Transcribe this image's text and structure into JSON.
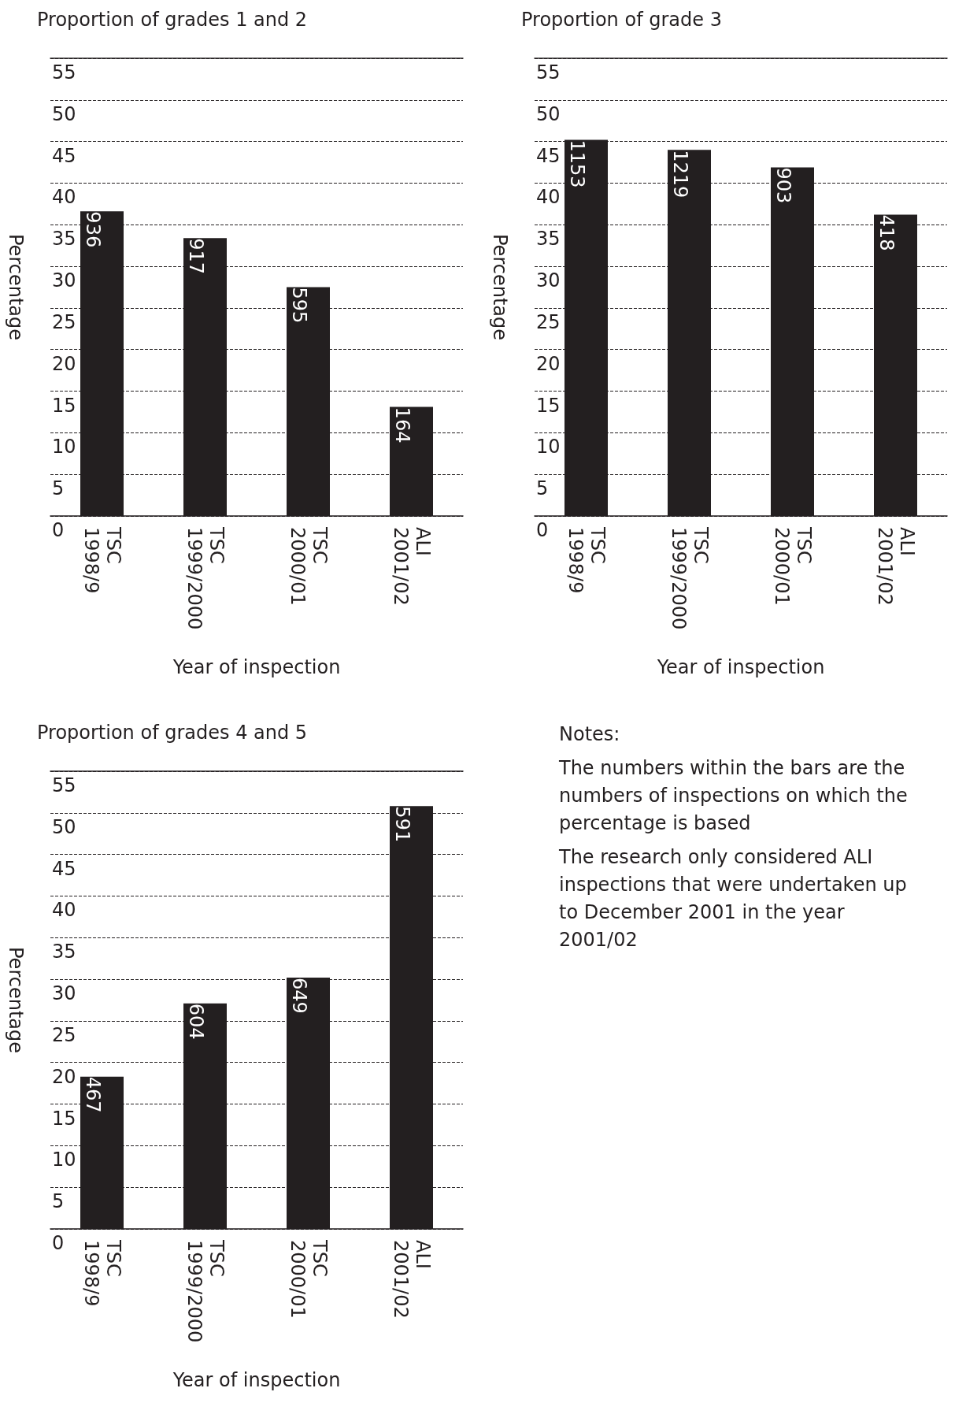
{
  "chart_data": [
    {
      "type": "bar",
      "title": "Proportion of grades 1 and 2",
      "xlabel": "Year of inspection",
      "ylabel": "Percentage",
      "categories": [
        "TSC\n1998/9",
        "TSC\n1999/2000",
        "TSC\n2000/01",
        "ALI\n2001/02"
      ],
      "values": [
        36.6,
        33.4,
        27.5,
        13.1
      ],
      "color": "#231f20",
      "ylim": [
        0,
        55
      ],
      "yticks": [
        0,
        5,
        10,
        15,
        20,
        25,
        30,
        35,
        40,
        45,
        50,
        55
      ],
      "grid": "y",
      "annotations": [
        {
          "text": "936",
          "x": "TSC\n1998/9",
          "y": 36.6
        },
        {
          "text": "917",
          "x": "TSC\n1999/2000",
          "y": 33.4
        },
        {
          "text": "595",
          "x": "TSC\n2000/01",
          "y": 27.5
        },
        {
          "text": "164",
          "x": "ALI\n2001/02",
          "y": 13.1
        }
      ]
    },
    {
      "type": "bar",
      "title": "Proportion of grade 3",
      "xlabel": "Year of inspection",
      "ylabel": "Percentage",
      "categories": [
        "TSC\n1998/9",
        "TSC\n1999/2000",
        "TSC\n2000/01",
        "ALI\n2001/02"
      ],
      "values": [
        45.2,
        44.0,
        41.9,
        36.2
      ],
      "color": "#231f20",
      "ylim": [
        0,
        55
      ],
      "yticks": [
        0,
        5,
        10,
        15,
        20,
        25,
        30,
        35,
        40,
        45,
        50,
        55
      ],
      "grid": "y",
      "annotations": [
        {
          "text": "1153",
          "x": "TSC\n1998/9",
          "y": 45.2
        },
        {
          "text": "1219",
          "x": "TSC\n1999/2000",
          "y": 44.0
        },
        {
          "text": "903",
          "x": "TSC\n2000/01",
          "y": 41.9
        },
        {
          "text": "418",
          "x": "ALI\n2001/02",
          "y": 36.2
        }
      ]
    },
    {
      "type": "bar",
      "title": "Proportion of grades 4 and 5",
      "xlabel": "Year of inspection",
      "ylabel": "Percentage",
      "categories": [
        "TSC\n1998/9",
        "TSC\n1999/2000",
        "TSC\n2000/01",
        "ALI\n2001/02"
      ],
      "values": [
        18.3,
        27.1,
        30.2,
        50.8
      ],
      "color": "#231f20",
      "ylim": [
        0,
        55
      ],
      "yticks": [
        0,
        5,
        10,
        15,
        20,
        25,
        30,
        35,
        40,
        45,
        50,
        55
      ],
      "grid": "y",
      "annotations": [
        {
          "text": "467",
          "x": "TSC\n1998/9",
          "y": 18.3
        },
        {
          "text": "604",
          "x": "TSC\n1999/2000",
          "y": 27.1
        },
        {
          "text": "649",
          "x": "TSC\n2000/01",
          "y": 30.2
        },
        {
          "text": "591",
          "x": "ALI\n2001/02",
          "y": 50.8
        }
      ]
    },
    {
      "type": "other",
      "title": "Notes:",
      "annotations": [
        "The numbers within the bars are the numbers of inspections on which the percentage is based",
        "The research only considered ALI inspections that were undertaken up to December 2001 in the year 2001/02"
      ]
    }
  ]
}
